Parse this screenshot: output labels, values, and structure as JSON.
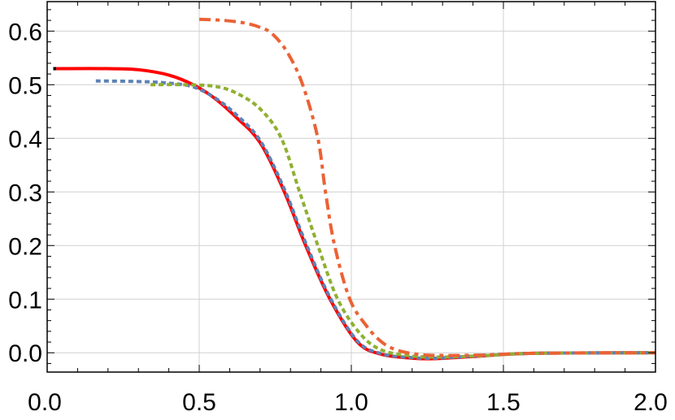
{
  "chart_data": {
    "type": "line",
    "title": "",
    "xlabel": "",
    "ylabel": "",
    "xlim": [
      0,
      2.0
    ],
    "ylim": [
      -0.036,
      0.655
    ],
    "grid": true,
    "x_ticks": [
      0.0,
      0.5,
      1.0,
      1.5,
      2.0
    ],
    "x_tick_labels": [
      "0.0",
      "0.5",
      "1.0",
      "1.5",
      "2.0"
    ],
    "y_ticks": [
      0.0,
      0.1,
      0.2,
      0.3,
      0.4,
      0.5,
      0.6
    ],
    "y_tick_labels": [
      "0.0",
      "0.1",
      "0.2",
      "0.3",
      "0.4",
      "0.5",
      "0.6"
    ],
    "series": [
      {
        "color": "#000000",
        "style": "solid",
        "x": [
          0.02,
          0.03
        ],
        "y": [
          0.53,
          0.53
        ]
      },
      {
        "color": "#ff0000",
        "style": "solid",
        "x": [
          0.03,
          0.2,
          0.3,
          0.4,
          0.48,
          0.55,
          0.62,
          0.7,
          0.78,
          0.85,
          0.93,
          1.02,
          1.1,
          1.2,
          1.27,
          1.4,
          1.6,
          2.0
        ],
        "y": [
          0.53,
          0.53,
          0.528,
          0.518,
          0.5,
          0.475,
          0.44,
          0.392,
          0.3,
          0.2,
          0.1,
          0.02,
          -0.003,
          -0.01,
          -0.011,
          -0.007,
          -0.001,
          0.0
        ]
      },
      {
        "color": "#5e81b5",
        "style": "dotted",
        "x": [
          0.16,
          0.3,
          0.4,
          0.48,
          0.55,
          0.62,
          0.7,
          0.78,
          0.85,
          0.93,
          1.02,
          1.1,
          1.2,
          1.28,
          1.4,
          1.6,
          2.0
        ],
        "y": [
          0.507,
          0.506,
          0.503,
          0.496,
          0.476,
          0.445,
          0.396,
          0.305,
          0.205,
          0.103,
          0.022,
          -0.002,
          -0.009,
          -0.01,
          -0.006,
          -0.001,
          0.0
        ]
      },
      {
        "color": "#8fb032",
        "style": "dotted",
        "x": [
          0.34,
          0.45,
          0.55,
          0.62,
          0.7,
          0.77,
          0.83,
          0.89,
          0.955,
          1.03,
          1.1,
          1.2,
          1.3,
          1.45,
          1.6,
          2.0
        ],
        "y": [
          0.5,
          0.5,
          0.497,
          0.485,
          0.455,
          0.4,
          0.3,
          0.2,
          0.1,
          0.035,
          0.005,
          -0.006,
          -0.008,
          -0.005,
          -0.001,
          0.0
        ]
      },
      {
        "color": "#eb6235",
        "style": "dashdot",
        "x": [
          0.5,
          0.58,
          0.65,
          0.7,
          0.74,
          0.79,
          0.84,
          0.89,
          0.915,
          0.945,
          0.995,
          1.05,
          1.1,
          1.15,
          1.22,
          1.3,
          1.45,
          1.6,
          2.0
        ],
        "y": [
          0.622,
          0.62,
          0.615,
          0.607,
          0.595,
          0.56,
          0.5,
          0.4,
          0.3,
          0.2,
          0.1,
          0.05,
          0.02,
          0.005,
          -0.003,
          -0.005,
          -0.004,
          -0.001,
          0.0
        ]
      }
    ]
  }
}
